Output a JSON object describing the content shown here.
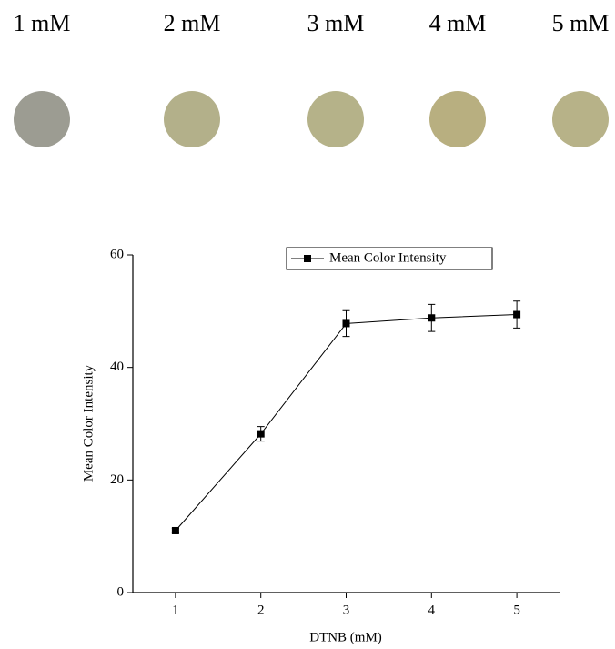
{
  "spots": [
    {
      "label": "1 mM",
      "color": "#9c9c92"
    },
    {
      "label": "2 mM",
      "color": "#b3b08a"
    },
    {
      "label": "3 mM",
      "color": "#b5b289"
    },
    {
      "label": "4 mM",
      "color": "#b8af80"
    },
    {
      "label": "5 mM",
      "color": "#b7b288"
    }
  ],
  "chart_data": {
    "type": "line",
    "x_label": "DTNB (mM)",
    "y_label": "Mean Color Intensity",
    "x": [
      1,
      2,
      3,
      4,
      5
    ],
    "series": [
      {
        "name": "Mean Color Intensity",
        "color": "#000000",
        "values": [
          11.0,
          28.2,
          47.8,
          48.8,
          49.4
        ],
        "errors": [
          0.4,
          1.3,
          2.3,
          2.4,
          2.4
        ]
      }
    ],
    "xlim": [
      0.5,
      5.5
    ],
    "ylim": [
      0,
      60
    ],
    "xticks": [
      1,
      2,
      3,
      4,
      5
    ],
    "yticks": [
      0,
      20,
      40,
      60
    ],
    "legend": "top-right"
  }
}
